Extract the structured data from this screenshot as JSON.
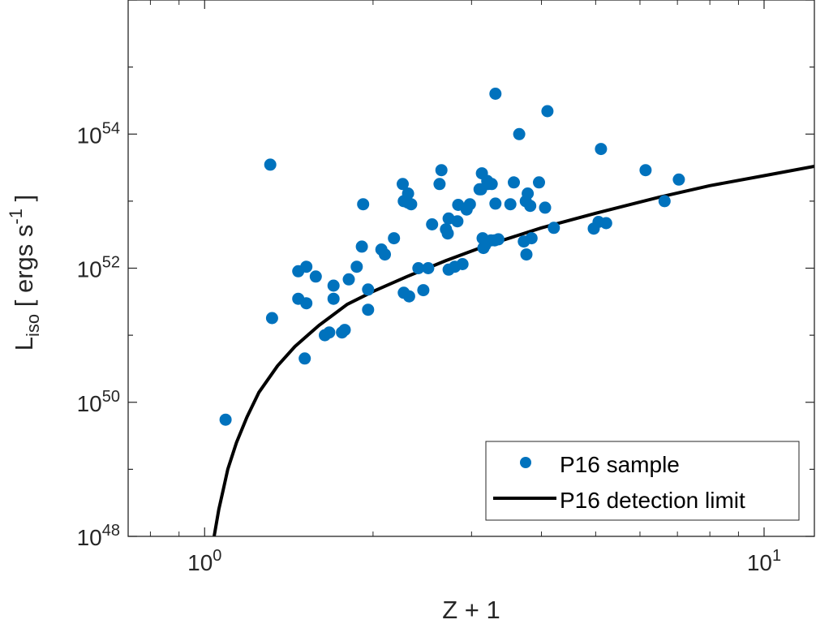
{
  "chart_data": {
    "type": "scatter",
    "xlabel": "Z + 1",
    "ylabel": {
      "base": "L",
      "sub": "iso",
      "text": " [ ergs s",
      "sup": "-1",
      "close": " ]"
    },
    "xscale": "log",
    "yscale": "log",
    "xlim": [
      0.73,
      12.3
    ],
    "ylim": [
      1e+48,
      1e+56
    ],
    "x_ticks": [
      {
        "value": 1,
        "base": "10",
        "exp": "0"
      },
      {
        "value": 10,
        "base": "10",
        "exp": "1"
      }
    ],
    "y_ticks": [
      {
        "value": 1e+48,
        "base": "10",
        "exp": "48"
      },
      {
        "value": 1e+50,
        "base": "10",
        "exp": "50"
      },
      {
        "value": 1e+52,
        "base": "10",
        "exp": "52"
      },
      {
        "value": 1e+54,
        "base": "10",
        "exp": "54"
      }
    ],
    "grid": false,
    "legend_position": "bottom-right",
    "series": [
      {
        "name": "P16 sample",
        "kind": "scatter",
        "color": "#0072BD",
        "points": [
          [
            1.09,
            5.5e+49
          ],
          [
            1.31,
            3.5e+53
          ],
          [
            1.32,
            1.8e+51
          ],
          [
            1.47,
            9e+51
          ],
          [
            1.47,
            3.5e+51
          ],
          [
            1.52,
            1.05e+52
          ],
          [
            1.52,
            3e+51
          ],
          [
            1.51,
            4.5e+50
          ],
          [
            1.58,
            7.5e+51
          ],
          [
            1.64,
            1e+51
          ],
          [
            1.67,
            1.1e+51
          ],
          [
            1.7,
            5.5e+51
          ],
          [
            1.7,
            3.5e+51
          ],
          [
            1.76,
            1.1e+51
          ],
          [
            1.78,
            1.2e+51
          ],
          [
            1.81,
            6.8e+51
          ],
          [
            1.87,
            1.05e+52
          ],
          [
            1.91,
            2.1e+52
          ],
          [
            1.92,
            9e+52
          ],
          [
            1.96,
            4.8e+51
          ],
          [
            1.96,
            2.4e+51
          ],
          [
            2.07,
            1.9e+52
          ],
          [
            2.1,
            1.6e+52
          ],
          [
            2.18,
            2.8e+52
          ],
          [
            2.26,
            1.8e+53
          ],
          [
            2.27,
            4.3e+51
          ],
          [
            2.27,
            1e+53
          ],
          [
            2.31,
            1.3e+53
          ],
          [
            2.32,
            3.8e+51
          ],
          [
            2.31,
            9.5e+52
          ],
          [
            2.34,
            9e+52
          ],
          [
            2.41,
            1e+52
          ],
          [
            2.46,
            4.7e+51
          ],
          [
            2.51,
            1e+52
          ],
          [
            2.55,
            4.5e+52
          ],
          [
            2.63,
            1.8e+53
          ],
          [
            2.65,
            2.9e+53
          ],
          [
            2.7,
            3.8e+52
          ],
          [
            2.72,
            3.3e+52
          ],
          [
            2.73,
            5.5e+52
          ],
          [
            2.73,
            9.5e+51
          ],
          [
            2.8,
            1.05e+52
          ],
          [
            2.83,
            5e+52
          ],
          [
            2.84,
            8.8e+52
          ],
          [
            2.89,
            1.15e+52
          ],
          [
            2.94,
            7.5e+52
          ],
          [
            2.98,
            9e+52
          ],
          [
            3.1,
            1.5e+53
          ],
          [
            3.13,
            2.6e+53
          ],
          [
            3.12,
            1.5e+53
          ],
          [
            3.14,
            2.8e+52
          ],
          [
            3.15,
            2e+52
          ],
          [
            3.17,
            2.2e+52
          ],
          [
            3.2,
            2e+53
          ],
          [
            3.21,
            1.8e+53
          ],
          [
            3.25,
            2.6e+52
          ],
          [
            3.26,
            1.8e+53
          ],
          [
            3.3,
            2.6e+52
          ],
          [
            3.31,
            4e+54
          ],
          [
            3.31,
            9.2e+52
          ],
          [
            3.35,
            2.7e+52
          ],
          [
            3.52,
            9e+52
          ],
          [
            3.57,
            1.9e+53
          ],
          [
            3.65,
            1e+54
          ],
          [
            3.72,
            2.5e+52
          ],
          [
            3.75,
            1e+53
          ],
          [
            3.76,
            1.6e+52
          ],
          [
            3.78,
            1.3e+53
          ],
          [
            3.82,
            8.5e+52
          ],
          [
            3.84,
            2.8e+52
          ],
          [
            3.96,
            1.9e+53
          ],
          [
            4.06,
            8e+52
          ],
          [
            4.1,
            2.2e+54
          ],
          [
            4.21,
            4e+52
          ],
          [
            4.96,
            3.9e+52
          ],
          [
            5.06,
            4.9e+52
          ],
          [
            5.11,
            6e+53
          ],
          [
            5.22,
            4.7e+52
          ],
          [
            6.14,
            2.9e+53
          ],
          [
            6.64,
            1e+53
          ],
          [
            7.04,
            2.1e+53
          ]
        ]
      },
      {
        "name": "P16 detection limit",
        "kind": "line",
        "color": "#000000",
        "points": [
          [
            1.04,
            1e+48
          ],
          [
            1.06,
            2.5e+48
          ],
          [
            1.08,
            5e+48
          ],
          [
            1.1,
            1e+49
          ],
          [
            1.14,
            2.5e+49
          ],
          [
            1.19,
            6e+49
          ],
          [
            1.25,
            1.4e+50
          ],
          [
            1.35,
            3.5e+50
          ],
          [
            1.45,
            6.8e+50
          ],
          [
            1.6,
            1.4e+51
          ],
          [
            1.8,
            2.9e+51
          ],
          [
            2.0,
            4.5e+51
          ],
          [
            2.3,
            7.5e+51
          ],
          [
            2.7,
            1.3e+52
          ],
          [
            3.2,
            2.2e+52
          ],
          [
            4.0,
            4e+52
          ],
          [
            5.0,
            6.6e+52
          ],
          [
            6.5,
            1.15e+53
          ],
          [
            8.0,
            1.7e+53
          ],
          [
            10.0,
            2.4e+53
          ],
          [
            12.3,
            3.3e+53
          ]
        ]
      }
    ]
  }
}
